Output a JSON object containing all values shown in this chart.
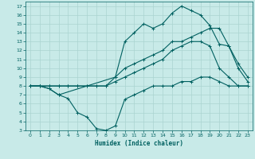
{
  "xlabel": "Humidex (Indice chaleur)",
  "bg_color": "#c8eae8",
  "grid_color": "#aad4d0",
  "line_color": "#006060",
  "xlim": [
    -0.5,
    23.5
  ],
  "ylim": [
    3,
    17.5
  ],
  "xticks": [
    0,
    1,
    2,
    3,
    4,
    5,
    6,
    7,
    8,
    9,
    10,
    11,
    12,
    13,
    14,
    15,
    16,
    17,
    18,
    19,
    20,
    21,
    22,
    23
  ],
  "yticks": [
    3,
    4,
    5,
    6,
    7,
    8,
    9,
    10,
    11,
    12,
    13,
    14,
    15,
    16,
    17
  ],
  "line1_x": [
    0,
    1,
    2,
    3,
    4,
    5,
    6,
    7,
    8,
    9,
    10,
    11,
    12,
    13,
    14,
    15,
    16,
    17,
    18,
    19,
    20,
    21,
    22,
    23
  ],
  "line1_y": [
    8,
    8,
    7.7,
    7,
    6.6,
    5,
    4.5,
    3.2,
    3,
    3.5,
    6.5,
    7,
    7.5,
    8,
    8,
    8,
    8.5,
    8.5,
    9,
    9,
    8.5,
    8,
    8,
    8
  ],
  "line2_x": [
    0,
    1,
    2,
    3,
    4,
    5,
    6,
    7,
    8,
    9,
    10,
    11,
    12,
    13,
    14,
    15,
    16,
    17,
    18,
    19,
    20,
    21,
    22,
    23
  ],
  "line2_y": [
    8,
    8,
    8,
    8,
    8,
    8,
    8,
    8,
    8,
    8.5,
    9,
    9.5,
    10,
    10.5,
    11,
    12,
    12.5,
    13,
    13,
    12.5,
    10,
    9,
    8,
    8
  ],
  "line3_x": [
    0,
    1,
    2,
    3,
    4,
    5,
    6,
    7,
    8,
    9,
    10,
    11,
    12,
    13,
    14,
    15,
    16,
    17,
    18,
    19,
    20,
    21,
    22,
    23
  ],
  "line3_y": [
    8,
    8,
    8,
    8,
    8,
    8,
    8,
    8,
    8,
    9,
    10,
    10.5,
    11,
    11.5,
    12,
    13,
    13,
    13.5,
    14,
    14.5,
    14.5,
    12.5,
    10,
    8.5
  ],
  "line4_x": [
    0,
    1,
    2,
    3,
    9,
    10,
    11,
    12,
    13,
    14,
    15,
    16,
    17,
    18,
    19,
    20,
    21,
    22,
    23
  ],
  "line4_y": [
    8,
    8,
    7.7,
    7,
    9,
    13,
    14,
    15,
    14.5,
    15,
    16.2,
    17,
    16.5,
    16,
    14.8,
    12.7,
    12.5,
    10.5,
    9
  ]
}
